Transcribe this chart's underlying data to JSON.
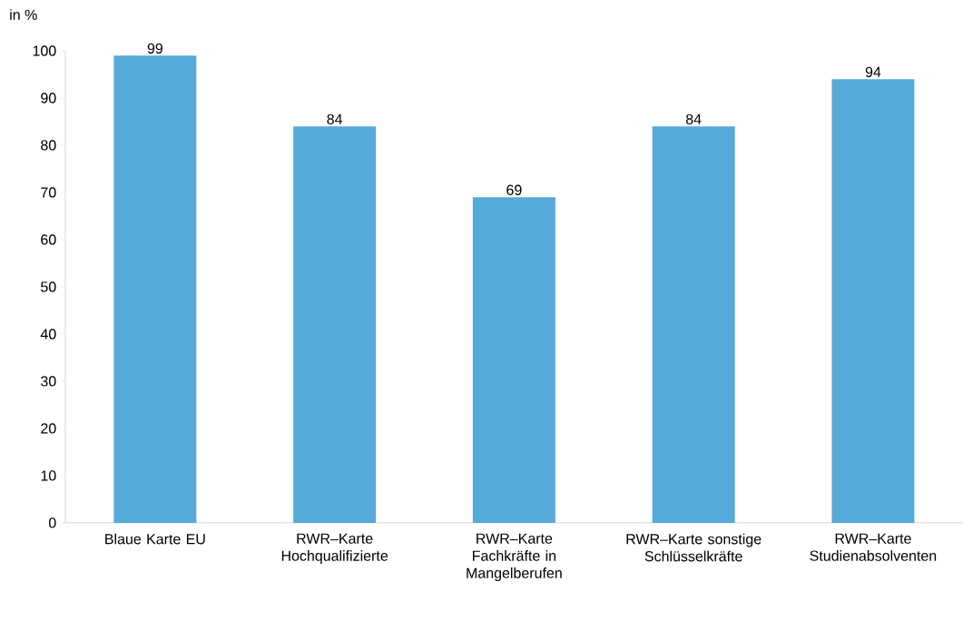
{
  "chart_data": {
    "type": "bar",
    "ylabel": "in %",
    "categories": [
      "Blaue Karte EU",
      "RWR–Karte Hochqualifizierte",
      "RWR–Karte Fachkräfte in Mangelberufen",
      "RWR–Karte sonstige Schlüsselkräfte",
      "RWR–Karte Studienabsolventen"
    ],
    "values": [
      99,
      84,
      69,
      84,
      94
    ],
    "color": "#55aad9",
    "ylim": [
      0,
      100
    ],
    "yticks": [
      0,
      10,
      20,
      30,
      40,
      50,
      60,
      70,
      80,
      90,
      100
    ],
    "grid": false,
    "data_labels": true
  }
}
